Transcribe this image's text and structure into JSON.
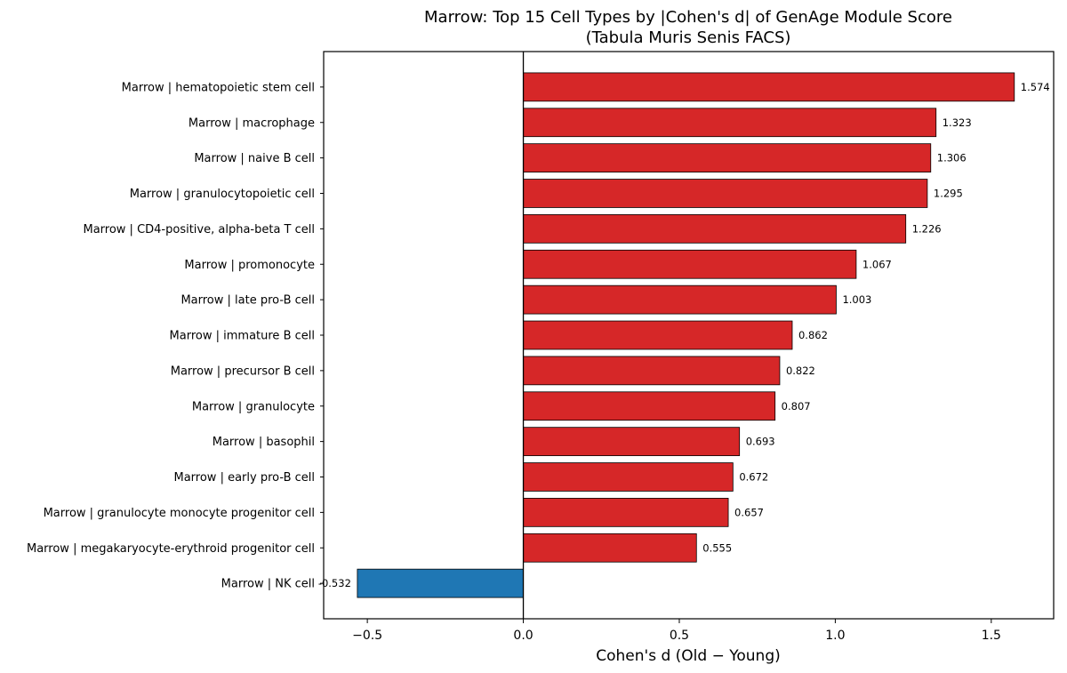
{
  "chart_data": {
    "type": "bar",
    "orientation": "horizontal",
    "title": "Marrow: Top 15 Cell Types by |Cohen's d| of GenAge Module Score",
    "subtitle": "(Tabula Muris Senis FACS)",
    "xlabel": "Cohen's d (Old − Young)",
    "ylabel": "",
    "xlim": [
      -0.64,
      1.7
    ],
    "x_ticks": [
      -0.5,
      0.0,
      0.5,
      1.0,
      1.5
    ],
    "x_tick_labels": [
      "−0.5",
      "0.0",
      "0.5",
      "1.0",
      "1.5"
    ],
    "grid": false,
    "reference_line": 0,
    "colors": {
      "positive": "#d62728",
      "negative": "#1f77b4",
      "edge": "#000000"
    },
    "categories": [
      "Marrow | hematopoietic stem cell",
      "Marrow | macrophage",
      "Marrow | naive B cell",
      "Marrow | granulocytopoietic cell",
      "Marrow | CD4-positive, alpha-beta T cell",
      "Marrow | promonocyte",
      "Marrow | late pro-B cell",
      "Marrow | immature B cell",
      "Marrow | precursor B cell",
      "Marrow | granulocyte",
      "Marrow | basophil",
      "Marrow | early pro-B cell",
      "Marrow | granulocyte monocyte progenitor cell",
      "Marrow | megakaryocyte-erythroid progenitor cell",
      "Marrow | NK cell"
    ],
    "values": [
      1.574,
      1.323,
      1.306,
      1.295,
      1.226,
      1.067,
      1.003,
      0.862,
      0.822,
      0.807,
      0.693,
      0.672,
      0.657,
      0.555,
      -0.532
    ],
    "value_labels": [
      "1.574",
      "1.323",
      "1.306",
      "1.295",
      "1.226",
      "1.067",
      "1.003",
      "0.862",
      "0.822",
      "0.807",
      "0.693",
      "0.672",
      "0.657",
      "0.555",
      "-0.532"
    ]
  }
}
